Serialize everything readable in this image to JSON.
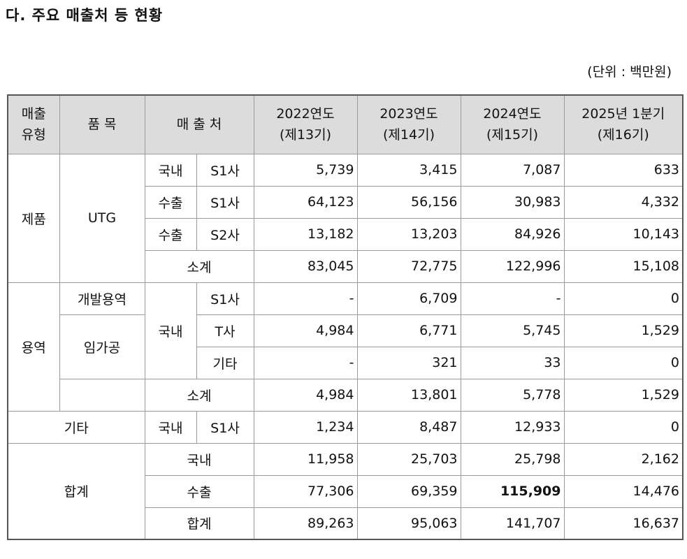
{
  "heading": "다. 주요 매출처 등 현황",
  "unit": "(단위 : 백만원)",
  "header": {
    "type_l1": "매출",
    "type_l2": "유형",
    "item": "품 목",
    "customer": "매 출 처",
    "years": [
      {
        "l1": "2022연도",
        "l2": "(제13기)"
      },
      {
        "l1": "2023연도",
        "l2": "(제14기)"
      },
      {
        "l1": "2024연도",
        "l2": "(제15기)"
      },
      {
        "l1": "2025년 1분기",
        "l2": "(제16기)"
      }
    ]
  },
  "product": {
    "type": "제품",
    "item": "UTG",
    "rows": [
      {
        "region": "국내",
        "customer": "S1사",
        "values": [
          "5,739",
          "3,415",
          "7,087",
          "633"
        ]
      },
      {
        "region": "수출",
        "customer": "S1사",
        "values": [
          "64,123",
          "56,156",
          "30,983",
          "4,332"
        ]
      },
      {
        "region": "수출",
        "customer": "S2사",
        "values": [
          "13,182",
          "13,203",
          "84,926",
          "10,143"
        ]
      }
    ],
    "subtotal": {
      "label": "소계",
      "values": [
        "83,045",
        "72,775",
        "122,996",
        "15,108"
      ]
    }
  },
  "service": {
    "type": "용역",
    "region": "국내",
    "rows": [
      {
        "item": "개발용역",
        "customer": "S1사",
        "values": [
          "-",
          "6,709",
          "-",
          "0"
        ]
      },
      {
        "item": "임가공",
        "customer": "T사",
        "values": [
          "4,984",
          "6,771",
          "5,745",
          "1,529"
        ]
      },
      {
        "customer": "기타",
        "values": [
          "-",
          "321",
          "33",
          "0"
        ]
      }
    ],
    "subtotal": {
      "label": "소계",
      "values": [
        "4,984",
        "13,801",
        "5,778",
        "1,529"
      ]
    }
  },
  "other": {
    "type": "기타",
    "region": "국내",
    "customer": "S1사",
    "values": [
      "1,234",
      "8,487",
      "12,933",
      "0"
    ]
  },
  "total": {
    "type": "합계",
    "rows": [
      {
        "label": "국내",
        "values": [
          "11,958",
          "25,703",
          "25,798",
          "2,162"
        ]
      },
      {
        "label": "수출",
        "values": [
          "77,306",
          "69,359",
          "115,909",
          "14,476"
        ]
      },
      {
        "label": "합계",
        "values": [
          "89,263",
          "95,063",
          "141,707",
          "16,637"
        ]
      }
    ]
  }
}
